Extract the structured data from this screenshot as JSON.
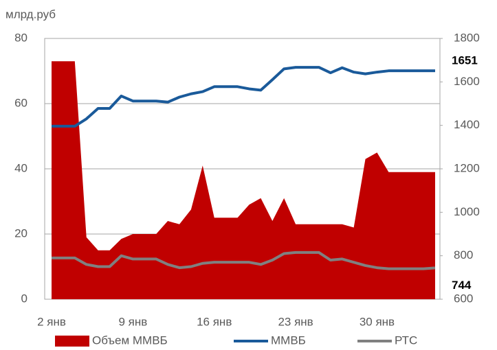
{
  "chart_data": {
    "type": "area-line",
    "ylabel": "млрд.руб",
    "categories": [
      "2 янв",
      null,
      null,
      null,
      null,
      null,
      null,
      "9 янв",
      null,
      null,
      null,
      null,
      null,
      null,
      "16 янв",
      null,
      null,
      null,
      null,
      null,
      null,
      "23 янв",
      null,
      null,
      null,
      null,
      null,
      null,
      "30 янв",
      null,
      null,
      null,
      null,
      null
    ],
    "ylim": [
      0,
      80
    ],
    "yticks": [
      0,
      20,
      40,
      60,
      80
    ],
    "y2lim": [
      600,
      1800
    ],
    "y2ticks": [
      600,
      800,
      1000,
      1200,
      1400,
      1600,
      1800
    ],
    "grid": true,
    "legend": "bottom",
    "series": [
      {
        "name": "Объем ММВБ",
        "color": "#c00000",
        "kind": "area",
        "values": [
          73,
          73,
          73,
          19,
          15,
          15,
          18.5,
          20,
          20,
          20,
          24,
          23,
          27.5,
          41,
          25,
          25,
          25,
          29,
          31,
          24,
          31,
          23,
          23,
          23,
          23,
          23,
          22,
          43,
          45,
          39,
          39,
          39,
          39,
          39
        ]
      },
      {
        "name": "ММВБ",
        "color": "#1a5a9a",
        "kind": "line",
        "axis": "y2",
        "values": [
          1396,
          1396,
          1396,
          1430,
          1478,
          1478,
          1535,
          1512,
          1512,
          1512,
          1507,
          1530,
          1545,
          1555,
          1578,
          1578,
          1578,
          1568,
          1562,
          1610,
          1660,
          1667,
          1667,
          1667,
          1642,
          1665,
          1645,
          1637,
          1645,
          1651,
          1651,
          1651,
          1651,
          1651
        ]
      },
      {
        "name": "РТС",
        "color": "#808080",
        "kind": "line",
        "axis": "y2",
        "values": [
          790,
          790,
          790,
          760,
          750,
          750,
          800,
          785,
          785,
          785,
          760,
          745,
          750,
          765,
          770,
          770,
          770,
          770,
          760,
          780,
          810,
          815,
          815,
          815,
          780,
          785,
          770,
          755,
          745,
          740,
          740,
          740,
          740,
          744
        ]
      }
    ]
  }
}
